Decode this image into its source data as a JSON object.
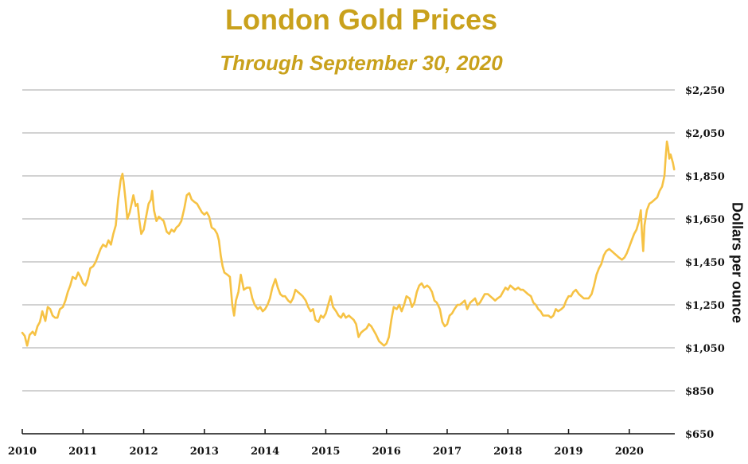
{
  "chart_data": {
    "type": "line",
    "title": "London Gold Prices",
    "subtitle": "Through September 30, 2020",
    "ylabel": "Dollars per ounce",
    "xlabel": "",
    "ylim": [
      650,
      2250
    ],
    "xlim": [
      2010,
      2020.75
    ],
    "yticks": [
      650,
      850,
      1050,
      1250,
      1450,
      1650,
      1850,
      2050,
      2250
    ],
    "ytick_labels": [
      "$650",
      "$850",
      "$1,050",
      "$1,250",
      "$1,450",
      "$1,650",
      "$1,850",
      "$2,050",
      "$2,250"
    ],
    "xticks": [
      2010,
      2011,
      2012,
      2013,
      2014,
      2015,
      2016,
      2017,
      2018,
      2019,
      2020
    ],
    "xtick_labels": [
      "2010",
      "2011",
      "2012",
      "2013",
      "2014",
      "2015",
      "2016",
      "2017",
      "2018",
      "2019",
      "2020"
    ],
    "grid": true,
    "line_color": "#f6c244",
    "series": [
      {
        "name": "London Gold Price",
        "x": [
          2010.0,
          2010.04,
          2010.08,
          2010.12,
          2010.17,
          2010.21,
          2010.25,
          2010.29,
          2010.33,
          2010.38,
          2010.42,
          2010.46,
          2010.5,
          2010.54,
          2010.58,
          2010.62,
          2010.67,
          2010.71,
          2010.75,
          2010.79,
          2010.83,
          2010.88,
          2010.92,
          2010.96,
          2011.0,
          2011.04,
          2011.08,
          2011.12,
          2011.17,
          2011.21,
          2011.25,
          2011.29,
          2011.33,
          2011.38,
          2011.42,
          2011.46,
          2011.5,
          2011.54,
          2011.58,
          2011.62,
          2011.65,
          2011.67,
          2011.7,
          2011.73,
          2011.77,
          2011.8,
          2011.83,
          2011.87,
          2011.9,
          2011.93,
          2011.96,
          2012.0,
          2012.04,
          2012.08,
          2012.12,
          2012.14,
          2012.17,
          2012.21,
          2012.25,
          2012.29,
          2012.33,
          2012.38,
          2012.42,
          2012.46,
          2012.5,
          2012.54,
          2012.58,
          2012.62,
          2012.67,
          2012.71,
          2012.75,
          2012.79,
          2012.83,
          2012.88,
          2012.92,
          2012.96,
          2013.0,
          2013.04,
          2013.08,
          2013.12,
          2013.17,
          2013.21,
          2013.24,
          2013.27,
          2013.3,
          2013.33,
          2013.38,
          2013.42,
          2013.46,
          2013.49,
          2013.52,
          2013.56,
          2013.6,
          2013.65,
          2013.7,
          2013.75,
          2013.79,
          2013.83,
          2013.88,
          2013.92,
          2013.96,
          2014.0,
          2014.04,
          2014.08,
          2014.12,
          2014.17,
          2014.21,
          2014.25,
          2014.29,
          2014.33,
          2014.38,
          2014.42,
          2014.46,
          2014.5,
          2014.54,
          2014.58,
          2014.62,
          2014.67,
          2014.71,
          2014.75,
          2014.79,
          2014.83,
          2014.88,
          2014.92,
          2014.96,
          2015.0,
          2015.04,
          2015.08,
          2015.12,
          2015.17,
          2015.21,
          2015.25,
          2015.29,
          2015.33,
          2015.38,
          2015.42,
          2015.46,
          2015.5,
          2015.54,
          2015.58,
          2015.62,
          2015.67,
          2015.71,
          2015.75,
          2015.79,
          2015.83,
          2015.88,
          2015.92,
          2015.96,
          2016.0,
          2016.04,
          2016.08,
          2016.12,
          2016.17,
          2016.21,
          2016.25,
          2016.29,
          2016.33,
          2016.38,
          2016.42,
          2016.46,
          2016.5,
          2016.54,
          2016.58,
          2016.62,
          2016.67,
          2016.71,
          2016.75,
          2016.79,
          2016.83,
          2016.88,
          2016.92,
          2016.96,
          2017.0,
          2017.04,
          2017.08,
          2017.12,
          2017.17,
          2017.21,
          2017.25,
          2017.29,
          2017.33,
          2017.38,
          2017.42,
          2017.46,
          2017.5,
          2017.54,
          2017.58,
          2017.62,
          2017.67,
          2017.71,
          2017.75,
          2017.79,
          2017.83,
          2017.88,
          2017.92,
          2017.96,
          2018.0,
          2018.04,
          2018.08,
          2018.12,
          2018.17,
          2018.21,
          2018.25,
          2018.29,
          2018.33,
          2018.38,
          2018.42,
          2018.46,
          2018.5,
          2018.54,
          2018.58,
          2018.62,
          2018.67,
          2018.71,
          2018.75,
          2018.79,
          2018.83,
          2018.88,
          2018.92,
          2018.96,
          2019.0,
          2019.04,
          2019.08,
          2019.12,
          2019.17,
          2019.21,
          2019.25,
          2019.29,
          2019.33,
          2019.38,
          2019.42,
          2019.46,
          2019.5,
          2019.54,
          2019.58,
          2019.62,
          2019.67,
          2019.71,
          2019.75,
          2019.79,
          2019.83,
          2019.88,
          2019.92,
          2019.96,
          2020.0,
          2020.04,
          2020.08,
          2020.12,
          2020.16,
          2020.19,
          2020.21,
          2020.23,
          2020.25,
          2020.29,
          2020.33,
          2020.38,
          2020.42,
          2020.46,
          2020.5,
          2020.54,
          2020.58,
          2020.6,
          2020.62,
          2020.64,
          2020.66,
          2020.68,
          2020.7,
          2020.72,
          2020.74
        ],
        "values": [
          1120,
          1105,
          1060,
          1110,
          1125,
          1110,
          1150,
          1170,
          1220,
          1175,
          1240,
          1230,
          1200,
          1190,
          1190,
          1230,
          1240,
          1270,
          1310,
          1340,
          1380,
          1370,
          1400,
          1380,
          1350,
          1340,
          1370,
          1420,
          1430,
          1450,
          1480,
          1510,
          1530,
          1520,
          1550,
          1530,
          1580,
          1620,
          1740,
          1830,
          1860,
          1820,
          1740,
          1650,
          1680,
          1720,
          1760,
          1710,
          1720,
          1640,
          1580,
          1600,
          1660,
          1720,
          1740,
          1780,
          1690,
          1640,
          1660,
          1650,
          1640,
          1590,
          1580,
          1600,
          1590,
          1610,
          1620,
          1640,
          1700,
          1760,
          1770,
          1740,
          1730,
          1720,
          1700,
          1680,
          1670,
          1680,
          1660,
          1610,
          1600,
          1580,
          1550,
          1480,
          1430,
          1400,
          1390,
          1380,
          1250,
          1200,
          1270,
          1310,
          1390,
          1320,
          1330,
          1330,
          1280,
          1250,
          1230,
          1240,
          1220,
          1230,
          1250,
          1280,
          1330,
          1370,
          1330,
          1300,
          1290,
          1290,
          1270,
          1260,
          1280,
          1320,
          1310,
          1300,
          1290,
          1270,
          1240,
          1220,
          1230,
          1180,
          1170,
          1200,
          1190,
          1210,
          1250,
          1290,
          1240,
          1220,
          1200,
          1190,
          1210,
          1190,
          1200,
          1190,
          1180,
          1160,
          1100,
          1120,
          1130,
          1140,
          1160,
          1150,
          1130,
          1110,
          1080,
          1070,
          1060,
          1070,
          1100,
          1180,
          1240,
          1230,
          1250,
          1220,
          1250,
          1290,
          1280,
          1240,
          1260,
          1310,
          1340,
          1350,
          1330,
          1340,
          1330,
          1310,
          1270,
          1260,
          1230,
          1170,
          1150,
          1160,
          1200,
          1210,
          1230,
          1250,
          1250,
          1260,
          1270,
          1230,
          1260,
          1270,
          1280,
          1250,
          1260,
          1280,
          1300,
          1300,
          1290,
          1280,
          1270,
          1280,
          1290,
          1310,
          1330,
          1320,
          1340,
          1330,
          1320,
          1330,
          1320,
          1320,
          1310,
          1300,
          1290,
          1260,
          1250,
          1230,
          1220,
          1200,
          1200,
          1200,
          1190,
          1200,
          1230,
          1220,
          1230,
          1240,
          1270,
          1290,
          1290,
          1310,
          1320,
          1300,
          1290,
          1280,
          1280,
          1280,
          1300,
          1340,
          1390,
          1420,
          1440,
          1480,
          1500,
          1510,
          1500,
          1490,
          1480,
          1470,
          1460,
          1470,
          1490,
          1520,
          1550,
          1580,
          1600,
          1640,
          1690,
          1580,
          1500,
          1620,
          1690,
          1720,
          1730,
          1740,
          1750,
          1780,
          1800,
          1850,
          1940,
          2010,
          1980,
          1930,
          1950,
          1930,
          1910,
          1880
        ]
      }
    ]
  }
}
